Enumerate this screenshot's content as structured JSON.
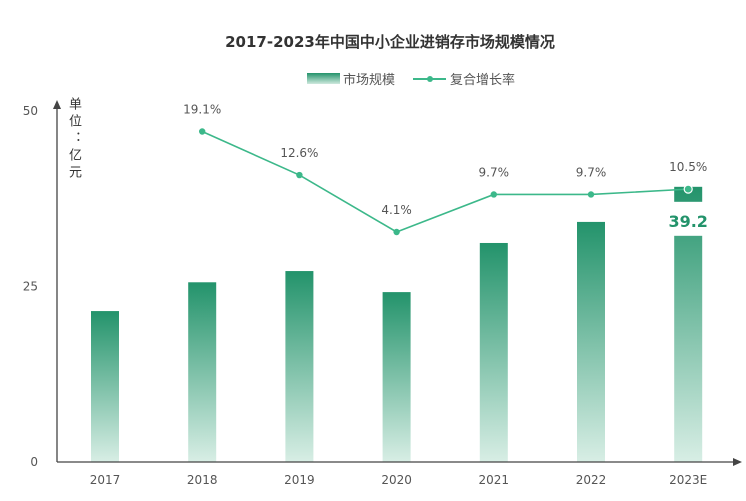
{
  "chart_data": {
    "type": "bar+line",
    "title": "2017-2023年中国中小企业进销存市场规模情况",
    "ylabel": "单位：亿元",
    "ylabel_chars": [
      "单",
      "位",
      "：",
      "亿",
      "元"
    ],
    "ylim": [
      0,
      50
    ],
    "yticks": [
      "0",
      "25",
      "50"
    ],
    "categories": [
      "2017",
      "2018",
      "2019",
      "2020",
      "2021",
      "2022",
      "2023E"
    ],
    "series": [
      {
        "name": "市场规模",
        "type": "bar",
        "values": [
          21.5,
          25.6,
          27.2,
          24.2,
          31.2,
          34.2,
          39.2
        ],
        "color": "#23936b"
      },
      {
        "name": "复合增长率",
        "type": "line",
        "values": [
          null,
          19.1,
          12.6,
          4.1,
          9.7,
          9.7,
          10.5
        ],
        "labels": [
          "",
          "19.1%",
          "12.6%",
          "4.1%",
          "9.7%",
          "9.7%",
          "10.5%"
        ],
        "color": "#3cb88a"
      }
    ],
    "highlight_label": "39.2",
    "grid": false,
    "legend": "top-center"
  }
}
